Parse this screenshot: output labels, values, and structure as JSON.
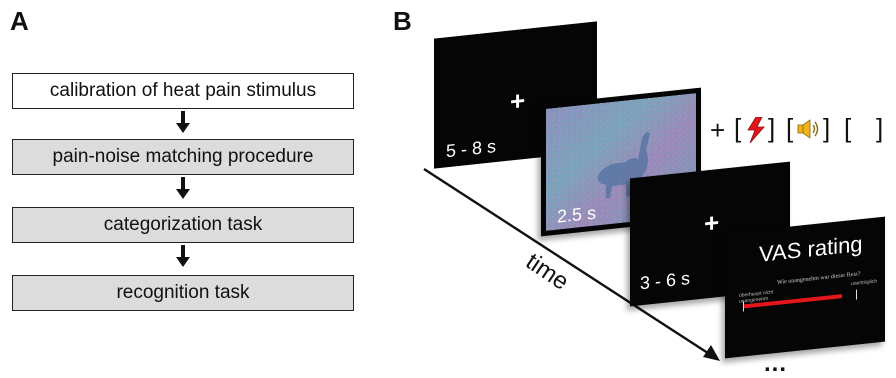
{
  "panel_a": {
    "label": "A",
    "steps": [
      {
        "label": "calibration of heat pain stimulus"
      },
      {
        "label": "pain-noise matching procedure"
      },
      {
        "label": "categorization task"
      },
      {
        "label": "recognition task"
      }
    ]
  },
  "panel_b": {
    "label": "B",
    "screens": [
      {
        "symbol": "+",
        "duration": "5 - 8 s"
      },
      {
        "duration": "2.5 s"
      },
      {
        "symbol": "+",
        "duration": "3 - 6 s"
      },
      {
        "title": "VAS rating",
        "question": "Wie unangenehm war dieser Reiz?",
        "anchor_left": "überhaupt nicht unangenehm",
        "anchor_right": "unerträglich"
      }
    ],
    "stimulus_options": {
      "plus": "+",
      "open": "[",
      "close": "]"
    },
    "time_label": "time",
    "ellipsis": "..."
  },
  "colors": {
    "vas_scale": "#e4161b",
    "bolt": "#e4161b",
    "speaker": "#f2b417",
    "screen": "#050505",
    "box_gray": "#dcdcdc"
  }
}
